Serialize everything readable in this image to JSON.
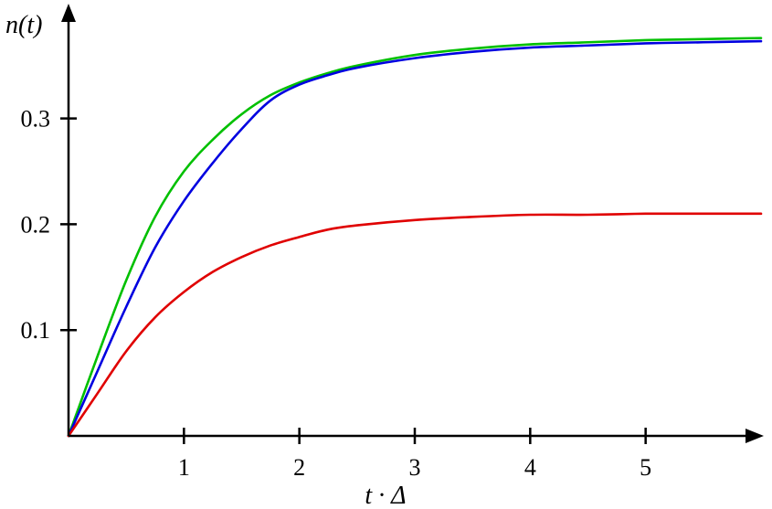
{
  "chart_data": {
    "type": "line",
    "xlabel": "t · Δ",
    "ylabel": "n(t)",
    "xlim": [
      0,
      6
    ],
    "ylim": [
      0,
      0.38
    ],
    "x_ticks": [
      1,
      2,
      3,
      4,
      5
    ],
    "x_tick_labels": [
      "1",
      "2",
      "3",
      "4",
      "5"
    ],
    "y_ticks": [
      0.1,
      0.2,
      0.3
    ],
    "y_tick_labels": [
      "0.1",
      "0.2",
      "0.3"
    ],
    "grid": false,
    "series": [
      {
        "color": "#00c000",
        "x": [
          0,
          0.25,
          0.5,
          0.75,
          1.0,
          1.25,
          1.5,
          1.75,
          2.0,
          2.25,
          2.5,
          3.0,
          3.5,
          4.0,
          4.5,
          5.0,
          5.5,
          6.0
        ],
        "y": [
          0,
          0.075,
          0.147,
          0.207,
          0.25,
          0.28,
          0.304,
          0.322,
          0.334,
          0.343,
          0.35,
          0.36,
          0.366,
          0.37,
          0.372,
          0.374,
          0.375,
          0.376
        ]
      },
      {
        "color": "#0000e0",
        "x": [
          0,
          0.25,
          0.5,
          0.75,
          1.0,
          1.25,
          1.5,
          1.75,
          2.0,
          2.25,
          2.5,
          3.0,
          3.5,
          4.0,
          4.5,
          5.0,
          5.5,
          6.0
        ],
        "y": [
          0,
          0.061,
          0.122,
          0.178,
          0.222,
          0.258,
          0.29,
          0.317,
          0.332,
          0.341,
          0.348,
          0.357,
          0.363,
          0.367,
          0.369,
          0.371,
          0.372,
          0.373
        ]
      },
      {
        "color": "#e00000",
        "x": [
          0,
          0.25,
          0.5,
          0.75,
          1.0,
          1.25,
          1.5,
          1.75,
          2.0,
          2.25,
          2.5,
          3.0,
          3.5,
          4.0,
          4.5,
          5.0,
          5.5,
          6.0
        ],
        "y": [
          0,
          0.04,
          0.08,
          0.112,
          0.136,
          0.155,
          0.169,
          0.18,
          0.188,
          0.195,
          0.199,
          0.204,
          0.207,
          0.209,
          0.209,
          0.21,
          0.21,
          0.21
        ]
      }
    ]
  }
}
